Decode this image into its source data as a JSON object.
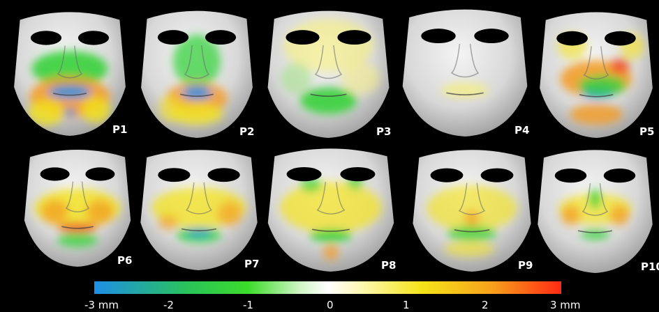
{
  "panels": [
    {
      "label": "P1",
      "pattern": "green-mid-orange-chin"
    },
    {
      "label": "P2",
      "pattern": "green-center-orange-chin"
    },
    {
      "label": "P3",
      "pattern": "yellow-green-light"
    },
    {
      "label": "P4",
      "pattern": "mostly-neutral"
    },
    {
      "label": "P5",
      "pattern": "orange-red-green"
    },
    {
      "label": "P6",
      "pattern": "yellow-orange"
    },
    {
      "label": "P7",
      "pattern": "yellow-orange-cheeks"
    },
    {
      "label": "P8",
      "pattern": "yellow-green-spots"
    },
    {
      "label": "P9",
      "pattern": "yellow-green-mouth"
    },
    {
      "label": "P10",
      "pattern": "orange-cheeks-green-nose"
    }
  ],
  "colorbar": {
    "ticks": [
      "-3 mm",
      "-2",
      "-1",
      "0",
      "1",
      "2",
      "3 mm"
    ],
    "colors": [
      "#1e8fe6",
      "#2fd23a",
      "#ffffff",
      "#f0e617",
      "#ff2a14"
    ]
  }
}
